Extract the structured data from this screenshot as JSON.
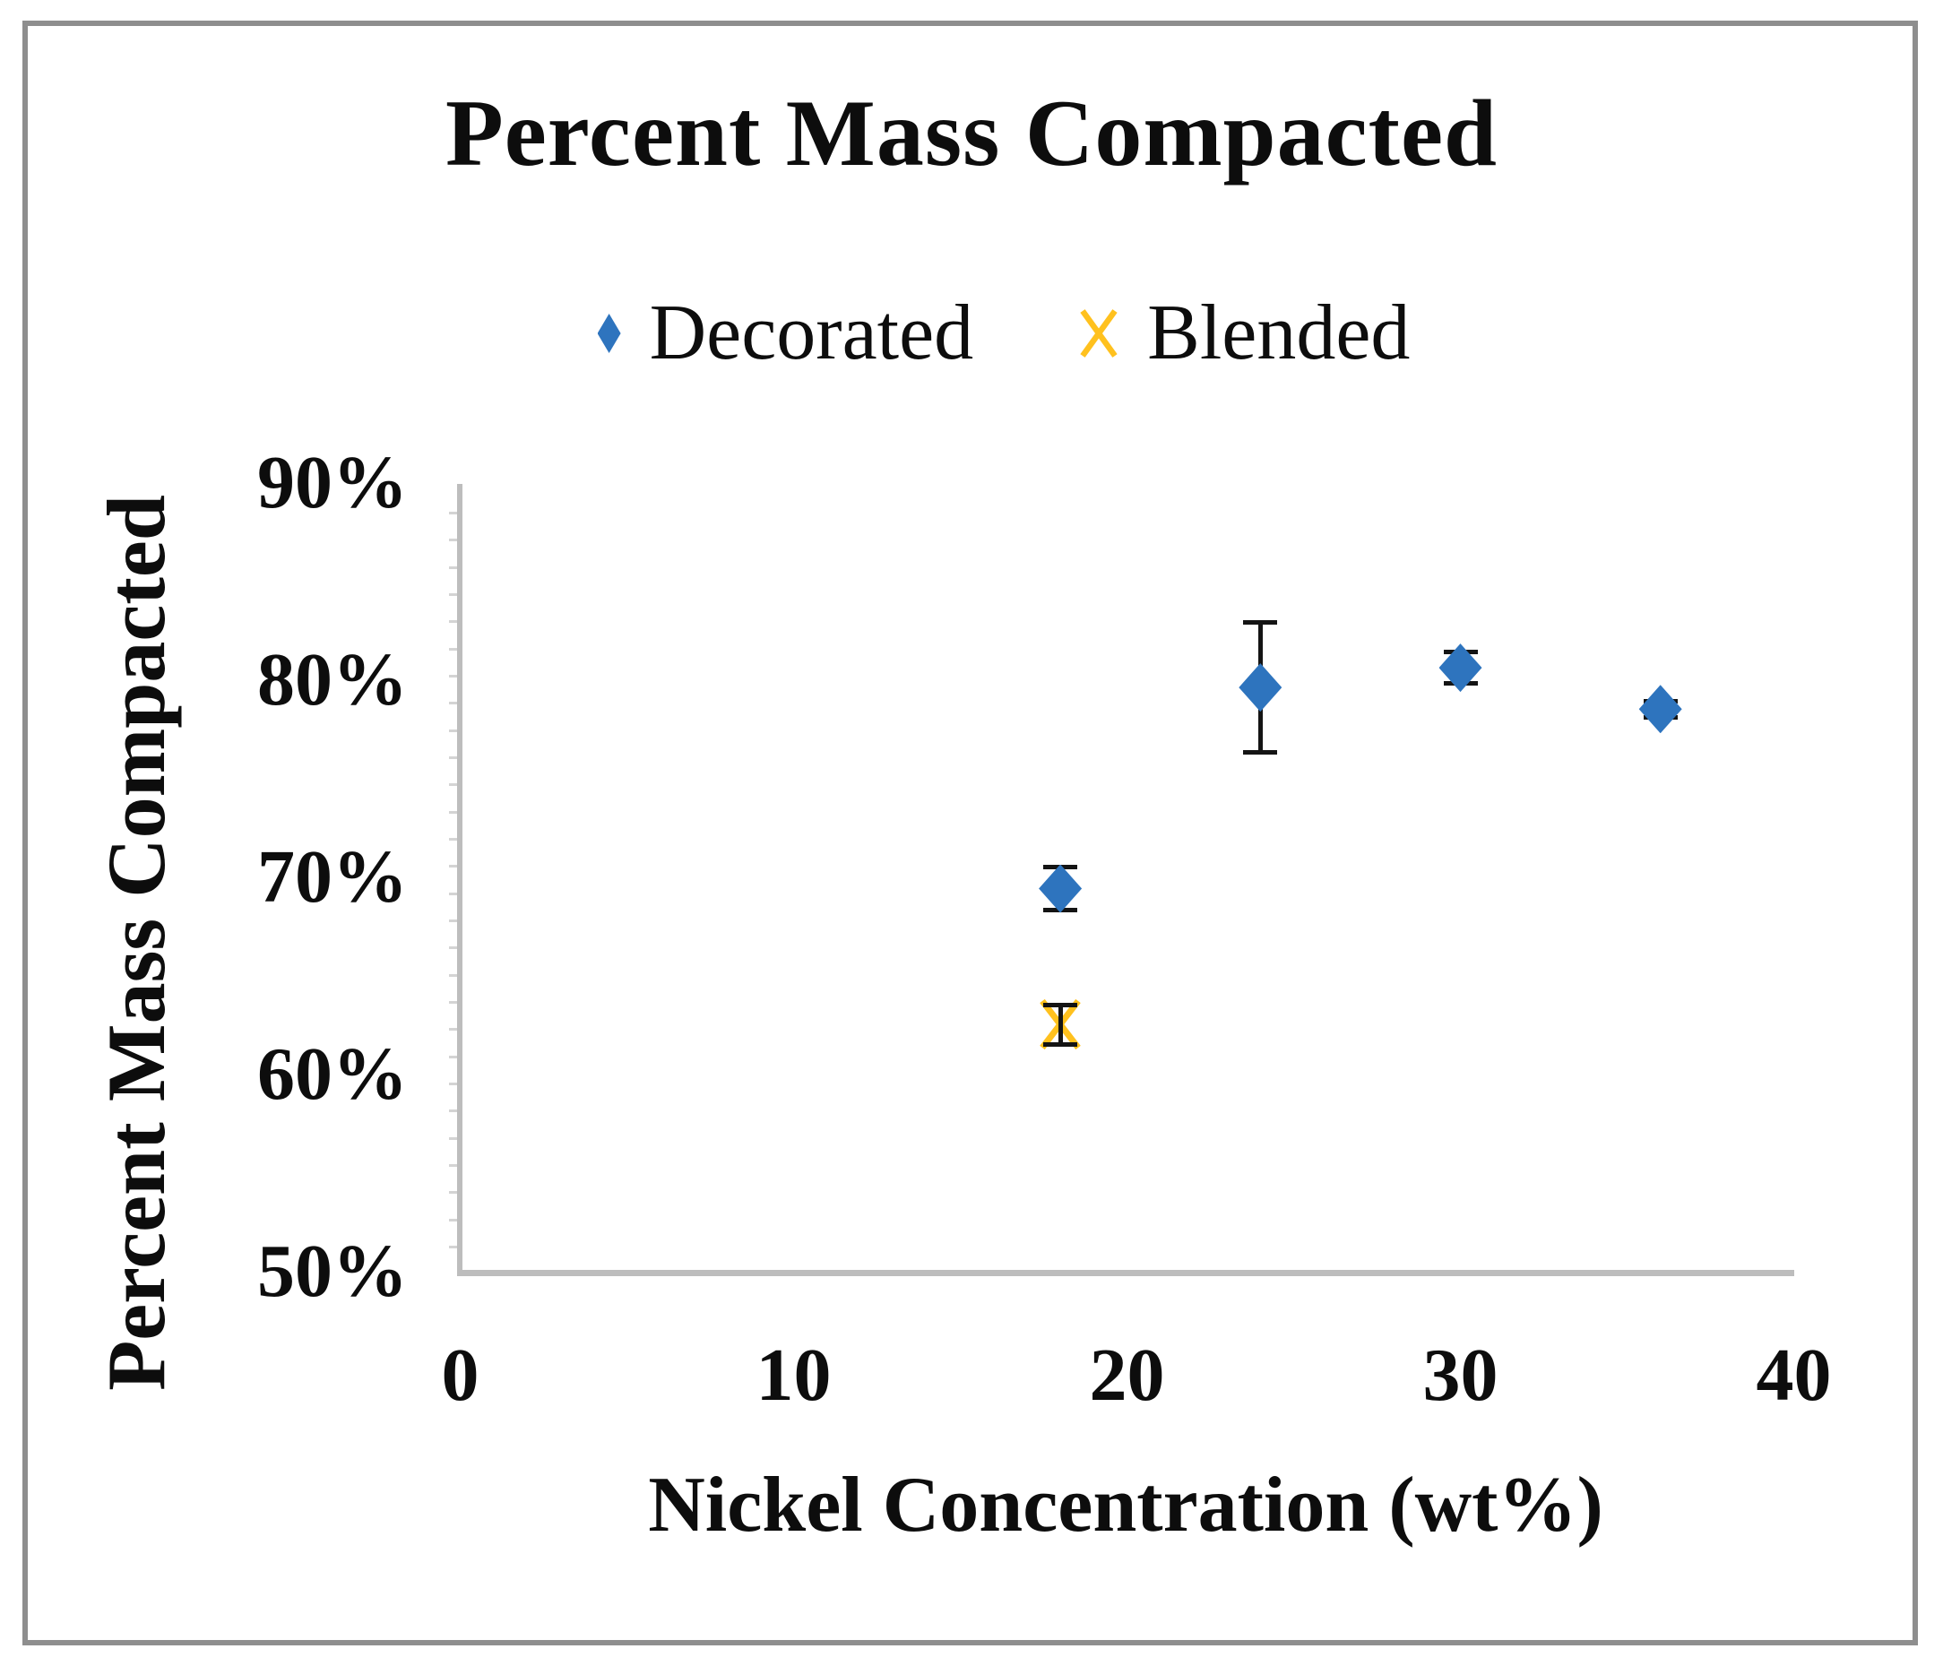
{
  "chart_data": {
    "type": "scatter",
    "title": "Percent Mass Compacted",
    "xlabel": "Nickel Concentration (wt%)",
    "ylabel": "Percent Mass Compacted",
    "xlim": [
      0,
      40
    ],
    "ylim": [
      50,
      90
    ],
    "x_tick_values": [
      0,
      10,
      20,
      30,
      40
    ],
    "x_tick_labels": [
      "0",
      "10",
      "20",
      "30",
      "40"
    ],
    "y_tick_values": [
      90,
      80,
      70,
      60,
      50
    ],
    "y_tick_labels": [
      "90%",
      "80%",
      "70%",
      "60%",
      "50%"
    ],
    "grid": false,
    "legend_position": "top-center",
    "series": [
      {
        "name": "Decorated",
        "marker": "diamond",
        "color": "#2E74BE",
        "points": [
          {
            "x": 18,
            "y": 69.5,
            "yerr": 1.1
          },
          {
            "x": 24,
            "y": 79.7,
            "yerr": 3.3
          },
          {
            "x": 30,
            "y": 80.7,
            "yerr": 0.8
          },
          {
            "x": 36,
            "y": 78.6,
            "yerr": 0.4
          }
        ]
      },
      {
        "name": "Blended",
        "marker": "x",
        "color": "#FFC11E",
        "points": [
          {
            "x": 18,
            "y": 62.6,
            "yerr": 1.0
          }
        ]
      }
    ],
    "error_bar_color": "#141414",
    "axis_color": "#bdbdbd",
    "frame_border_color": "#8e8e8e"
  }
}
